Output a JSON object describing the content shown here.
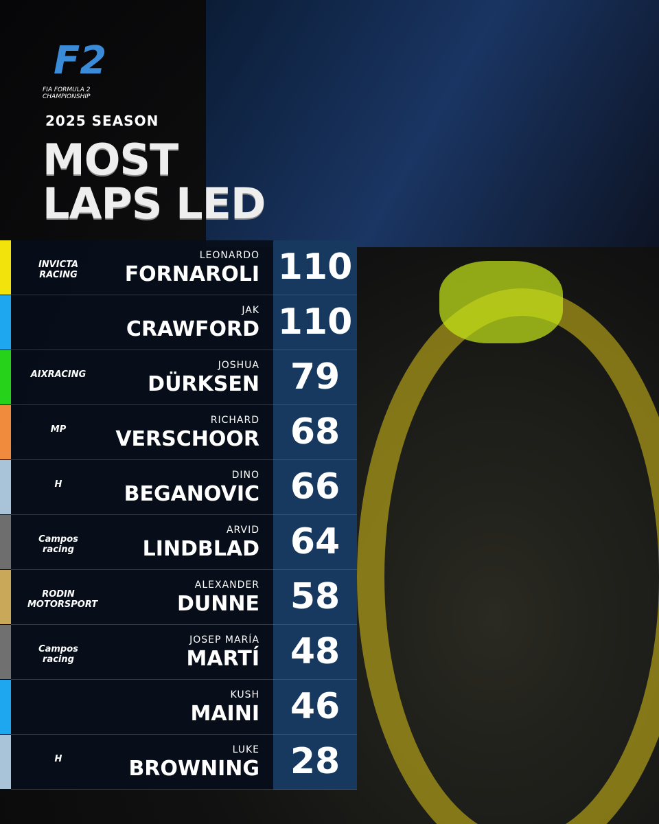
{
  "header": {
    "logo": "F2",
    "logo_subtitle": "FIA FORMULA 2 CHAMPIONSHIP",
    "season": "2025 SEASON",
    "title_line1": "MOST",
    "title_line2": "LAPS LED"
  },
  "table": {
    "rows": [
      {
        "first": "LEONARDO",
        "last": "FORNAROLI",
        "laps": 110,
        "team": "INVICTA RACING",
        "color": "#f2e30c"
      },
      {
        "first": "JAK",
        "last": "CRAWFORD",
        "laps": 110,
        "color": "#1ea7ef"
      },
      {
        "first": "JOSHUA",
        "last": "DÜRKSEN",
        "laps": 79,
        "team": "AIXRACING",
        "color": "#27d21a"
      },
      {
        "first": "RICHARD",
        "last": "VERSCHOOR",
        "laps": 68,
        "team": "MP",
        "color": "#f08a3c"
      },
      {
        "first": "DINO",
        "last": "BEGANOVIC",
        "laps": 66,
        "team": "H",
        "color": "#a9c3d8"
      },
      {
        "first": "ARVID",
        "last": "LINDBLAD",
        "laps": 64,
        "team": "Campos racing",
        "color": "#6e6e6e"
      },
      {
        "first": "ALEXANDER",
        "last": "DUNNE",
        "laps": 58,
        "team": "RODIN MOTORSPORT",
        "color": "#c9a85a"
      },
      {
        "first": "JOSEP MARÍA",
        "last": "MARTÍ",
        "laps": 48,
        "team": "Campos racing",
        "color": "#707070"
      },
      {
        "first": "KUSH",
        "last": "MAINI",
        "laps": 46,
        "color": "#1ea7ef"
      },
      {
        "first": "LUKE",
        "last": "BROWNING",
        "laps": 28,
        "team": "H",
        "color": "#a9c3d8"
      }
    ]
  }
}
